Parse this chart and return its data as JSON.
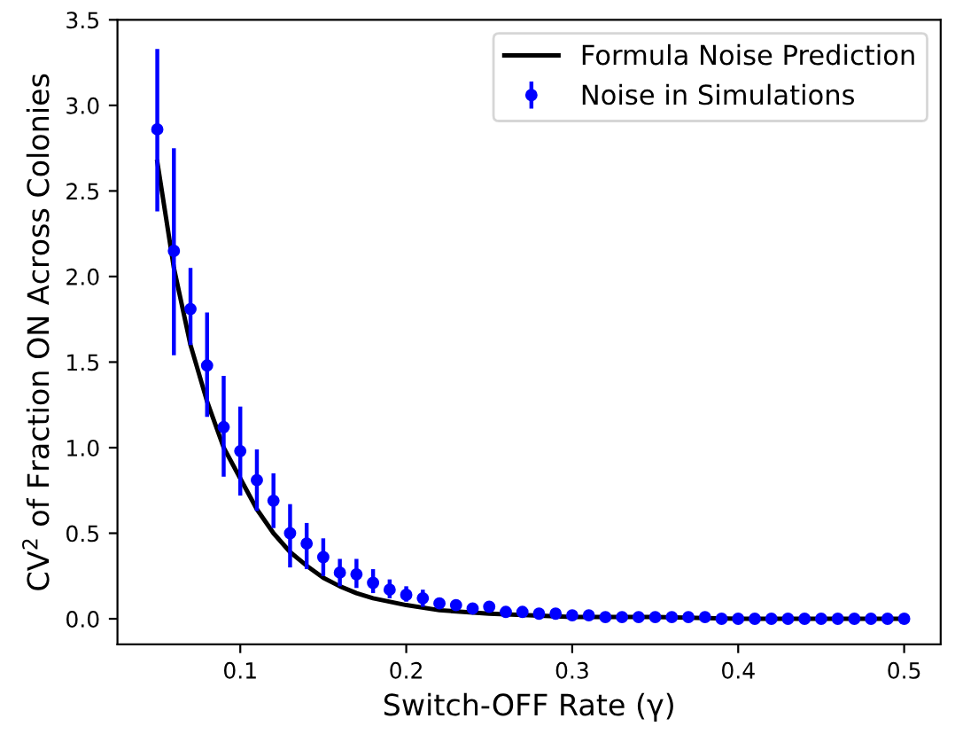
{
  "chart_data": {
    "type": "scatter",
    "xlabel": "Switch-OFF Rate (γ)",
    "ylabel": "CV$^{2}$ of Fraction ON Across Colonies",
    "xlim": [
      0.026,
      0.522
    ],
    "ylim": [
      -0.15,
      3.5
    ],
    "xticks": [
      0.1,
      0.2,
      0.3,
      0.4,
      0.5
    ],
    "yticks": [
      {
        "value": 0,
        "label": "0.0"
      },
      {
        "value": 0.5,
        "label": "0.5"
      },
      {
        "value": 1,
        "label": "1.0"
      },
      {
        "value": 1.5,
        "label": "1.5"
      },
      {
        "value": 2,
        "label": "2.0"
      },
      {
        "value": 2.5,
        "label": "2.5"
      },
      {
        "value": 3,
        "label": "3.0"
      },
      {
        "value": 3.5,
        "label": "3.5"
      }
    ],
    "grid": false,
    "legend": "top right",
    "series": [
      {
        "name": "Formula Noise Prediction",
        "type": "line",
        "color": "#000000",
        "marker": "none",
        "line_style": "solid",
        "x": [
          0.05,
          0.06,
          0.07,
          0.08,
          0.09,
          0.1,
          0.11,
          0.12,
          0.13,
          0.14,
          0.15,
          0.16,
          0.17,
          0.18,
          0.2,
          0.22,
          0.25,
          0.3,
          0.35,
          0.4,
          0.5
        ],
        "values": [
          2.67,
          2.05,
          1.6,
          1.27,
          1.0,
          0.82,
          0.64,
          0.5,
          0.39,
          0.31,
          0.24,
          0.19,
          0.15,
          0.12,
          0.08,
          0.05,
          0.03,
          0.01,
          0.01,
          0.0,
          0.0
        ]
      },
      {
        "name": "Noise in Simulations",
        "color": "#0000ff",
        "marker": "circle",
        "x": [
          0.05,
          0.06,
          0.07,
          0.08,
          0.09,
          0.1,
          0.11,
          0.12,
          0.13,
          0.14,
          0.15,
          0.16,
          0.17,
          0.18,
          0.19,
          0.2,
          0.21,
          0.22,
          0.23,
          0.24,
          0.25,
          0.26,
          0.27,
          0.28,
          0.29,
          0.3,
          0.31,
          0.32,
          0.33,
          0.34,
          0.35,
          0.36,
          0.37,
          0.38,
          0.39,
          0.4,
          0.41,
          0.42,
          0.43,
          0.44,
          0.45,
          0.46,
          0.47,
          0.48,
          0.49,
          0.5
        ],
        "values": [
          2.86,
          2.15,
          1.81,
          1.48,
          1.12,
          0.98,
          0.81,
          0.69,
          0.5,
          0.44,
          0.36,
          0.27,
          0.26,
          0.21,
          0.17,
          0.14,
          0.12,
          0.09,
          0.08,
          0.06,
          0.07,
          0.04,
          0.04,
          0.03,
          0.03,
          0.02,
          0.02,
          0.01,
          0.01,
          0.01,
          0.01,
          0.01,
          0.01,
          0.01,
          0.0,
          0.0,
          0.0,
          0.0,
          0.0,
          0.0,
          0.0,
          0.0,
          0.0,
          0.0,
          0.0,
          0.0
        ],
        "errors": [
          [
            2.38,
            3.33
          ],
          [
            1.54,
            2.75
          ],
          [
            1.6,
            2.05
          ],
          [
            1.18,
            1.79
          ],
          [
            0.83,
            1.42
          ],
          [
            0.72,
            1.24
          ],
          [
            0.63,
            0.99
          ],
          [
            0.53,
            0.85
          ],
          [
            0.3,
            0.67
          ],
          [
            0.29,
            0.56
          ],
          [
            0.25,
            0.47
          ],
          [
            0.19,
            0.35
          ],
          [
            0.18,
            0.35
          ],
          [
            0.15,
            0.29
          ],
          [
            0.12,
            0.23
          ],
          [
            0.1,
            0.19
          ],
          [
            0.07,
            0.17
          ],
          [
            0.06,
            0.12
          ],
          [
            0.06,
            0.1
          ],
          [
            0.04,
            0.08
          ],
          [
            0.04,
            0.1
          ],
          [
            0.03,
            0.05
          ],
          [
            0.03,
            0.05
          ],
          null,
          null,
          null,
          null,
          null,
          null,
          null,
          null,
          null,
          null,
          null,
          null,
          null,
          null,
          null,
          null,
          null,
          null,
          null,
          null,
          null,
          null,
          null
        ]
      }
    ]
  }
}
